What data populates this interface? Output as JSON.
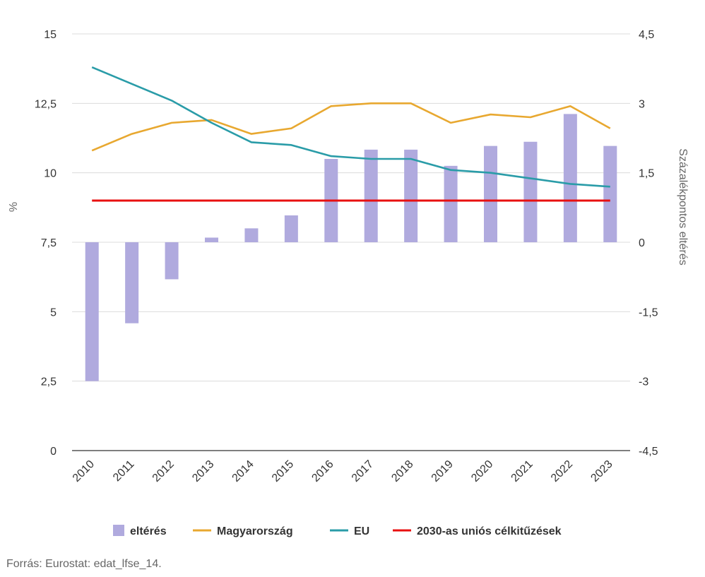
{
  "chart_data": {
    "type": "bar",
    "categories": [
      "2010",
      "2011",
      "2012",
      "2013",
      "2014",
      "2015",
      "2016",
      "2017",
      "2018",
      "2019",
      "2020",
      "2021",
      "2022",
      "2023"
    ],
    "y_left": {
      "label": "%",
      "range": [
        0,
        15
      ],
      "ticks": [
        0,
        2.5,
        5,
        7.5,
        10,
        12.5,
        15
      ],
      "tick_labels": [
        "0",
        "2,5",
        "5",
        "7,5",
        "10",
        "12,5",
        "15"
      ]
    },
    "y_right": {
      "label": "Százalékpontos eltérés",
      "range": [
        -4.5,
        4.5
      ],
      "ticks": [
        -4.5,
        -3,
        -1.5,
        0,
        1.5,
        3,
        4.5
      ],
      "tick_labels": [
        "-4,5",
        "-3",
        "-1,5",
        "0",
        "1,5",
        "3",
        "4,5"
      ]
    },
    "grid": true,
    "legend_position": "bottom",
    "series": [
      {
        "name": "eltérés",
        "type": "bar",
        "axis": "right",
        "color": "#b0aade",
        "values": [
          -3.0,
          -1.75,
          -0.8,
          0.1,
          0.3,
          0.58,
          1.8,
          2.0,
          2.0,
          1.65,
          2.08,
          2.17,
          2.77,
          2.08
        ]
      },
      {
        "name": "Magyarország",
        "type": "line",
        "axis": "left",
        "color": "#e8a830",
        "values": [
          10.8,
          11.4,
          11.8,
          11.9,
          11.4,
          11.6,
          12.4,
          12.5,
          12.5,
          11.8,
          12.1,
          12.0,
          12.4,
          11.6
        ]
      },
      {
        "name": "EU",
        "type": "line",
        "axis": "left",
        "color": "#2a9ca8",
        "values": [
          13.8,
          13.2,
          12.6,
          11.8,
          11.1,
          11.0,
          10.6,
          10.5,
          10.5,
          10.1,
          10.0,
          9.8,
          9.6,
          9.5
        ]
      },
      {
        "name": "2030-as uniós célkitűzések",
        "type": "line",
        "axis": "left",
        "color": "#e81010",
        "values": [
          9,
          9,
          9,
          9,
          9,
          9,
          9,
          9,
          9,
          9,
          9,
          9,
          9,
          9
        ]
      }
    ]
  },
  "source_text": "Forrás: Eurostat: edat_lfse_14."
}
